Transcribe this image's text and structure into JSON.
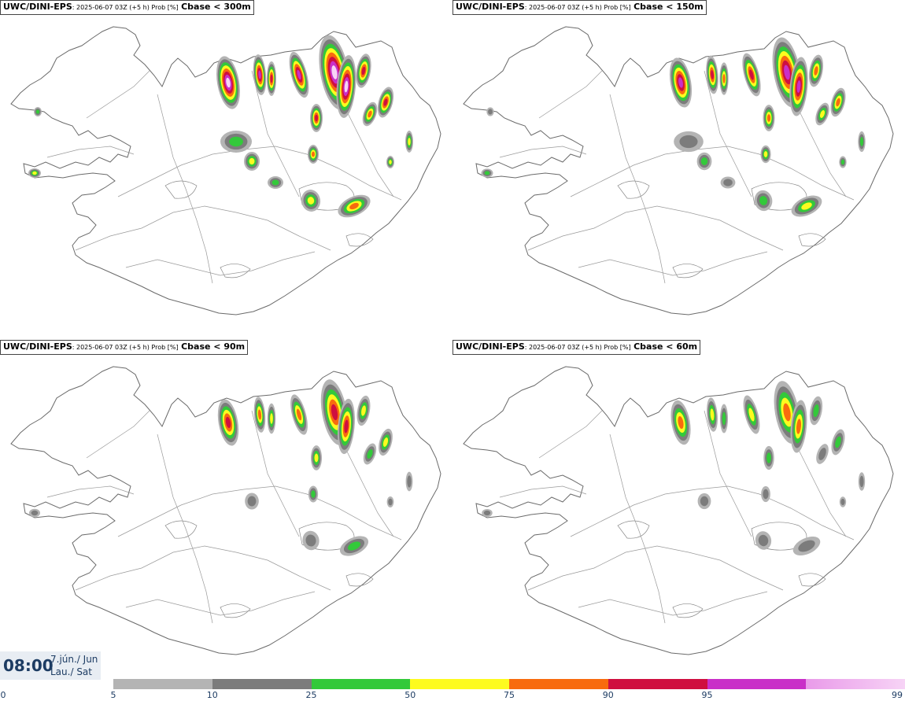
{
  "panels": [
    {
      "model": "UWC/DINI-EPS",
      "meta": ": 2025-06-07 03Z (+5 h) Prob [%]",
      "param": "Cbase < 300m"
    },
    {
      "model": "UWC/DINI-EPS",
      "meta": ": 2025-06-07 03Z (+5 h) Prob [%]",
      "param": "Cbase < 150m"
    },
    {
      "model": "UWC/DINI-EPS",
      "meta": ": 2025-06-07 03Z (+5 h) Prob [%]",
      "param": "Cbase < 90m"
    },
    {
      "model": "UWC/DINI-EPS",
      "meta": ": 2025-06-07 03Z (+5 h) Prob [%]",
      "param": "Cbase < 60m"
    }
  ],
  "valid_time": {
    "time": "08:00",
    "date_line1": "7.jún./ Jun",
    "date_line2": "Lau./ Sat"
  },
  "legend": {
    "ticks": [
      "0",
      "5",
      "10",
      "25",
      "50",
      "75",
      "90",
      "95",
      "99"
    ],
    "colors": [
      "#b4b4b4",
      "#7c7c7c",
      "#33c93a",
      "#fdfb1f",
      "#f86b0e",
      "#cf0f3f",
      "#c92fc8",
      "#f7d4f6"
    ]
  }
}
